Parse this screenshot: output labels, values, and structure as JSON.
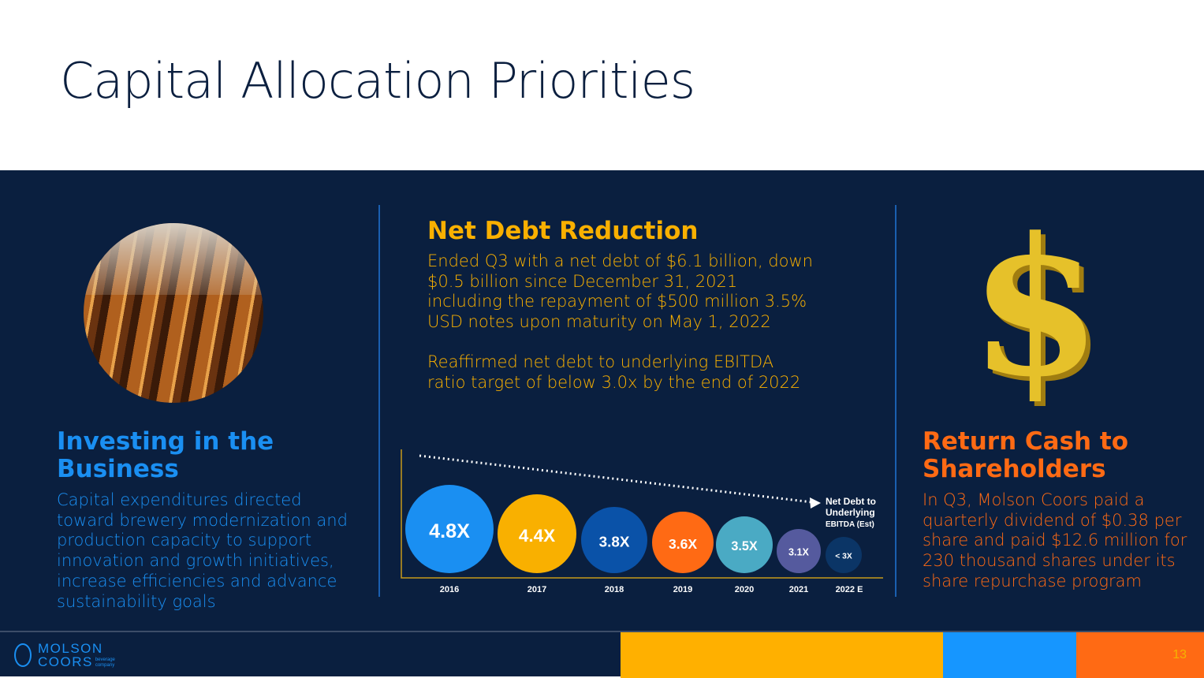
{
  "title": "Capital Allocation Priorities",
  "left": {
    "heading": "Investing in the Business",
    "body": "Capital expenditures directed toward brewery modernization and production capacity to support innovation and growth initiatives, increase efficiencies and advance sustainability goals"
  },
  "middle": {
    "heading": "Net Debt Reduction",
    "para1": "Ended Q3 with a net debt of $6.1 billion, down $0.5 billion since December 31, 2021 including the repayment of $500 million 3.5% USD notes upon maturity on May 1, 2022",
    "para2": "Reaffirmed net debt to underlying EBITDA ratio target of below 3.0x by the end of 2022"
  },
  "right": {
    "heading": "Return Cash to Shareholders",
    "body": "In Q3, Molson Coors paid a quarterly dividend of $0.38 per share and paid $12.6 million for 230 thousand shares under its share repurchase program",
    "icon": "dollar-sign-icon",
    "symbol": "$"
  },
  "chart_data": {
    "type": "bubble",
    "title": "Net Debt to Underlying EBITDA (Est)",
    "annotation_line1": "Net Debt to",
    "annotation_line2": "Underlying",
    "annotation_line3": "EBITDA (Est)",
    "categories": [
      "2016",
      "2017",
      "2018",
      "2019",
      "2020",
      "2021",
      "2022 E"
    ],
    "values": [
      4.8,
      4.4,
      3.8,
      3.6,
      3.5,
      3.1,
      3.0
    ],
    "labels": [
      "4.8X",
      "4.4X",
      "3.8X",
      "3.6X",
      "3.5X",
      "3.1X",
      "< 3X"
    ],
    "colors": [
      "#1a8ff2",
      "#f9b000",
      "#0a52a8",
      "#ff6a14",
      "#4aaac4",
      "#555a9e",
      "#0b3566"
    ]
  },
  "footer": {
    "logo_line1": "MOLSON",
    "logo_line2": "COORS",
    "logo_sub1": "beverage",
    "logo_sub2": "company",
    "page": "13",
    "colors": [
      "#ffb000",
      "#1696ff",
      "#ff6a14"
    ]
  }
}
